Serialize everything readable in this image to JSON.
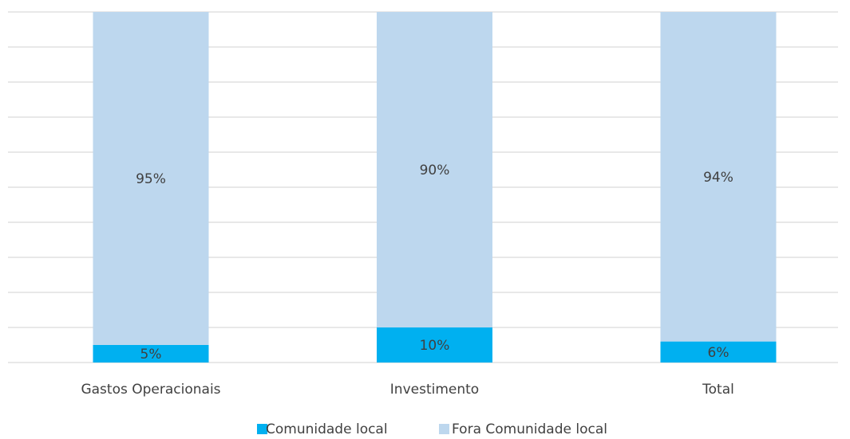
{
  "chart_data": {
    "type": "stacked_bar",
    "categories": [
      "Gastos Operacionais",
      "Investimento",
      "Total"
    ],
    "series": [
      {
        "name": "Comunidade local",
        "color": "#00b0f0",
        "values": [
          5,
          10,
          6
        ],
        "value_labels": [
          "5%",
          "10%",
          "6%"
        ]
      },
      {
        "name": "Fora Comunidade local",
        "color": "#bdd7ee",
        "values": [
          95,
          90,
          94
        ],
        "value_labels": [
          "95%",
          "90%",
          "94%"
        ]
      }
    ],
    "ylim": [
      0,
      100
    ],
    "yticks": [
      0,
      10,
      20,
      30,
      40,
      50,
      60,
      70,
      80,
      90,
      100
    ],
    "grid": true,
    "legend": "bottom"
  }
}
